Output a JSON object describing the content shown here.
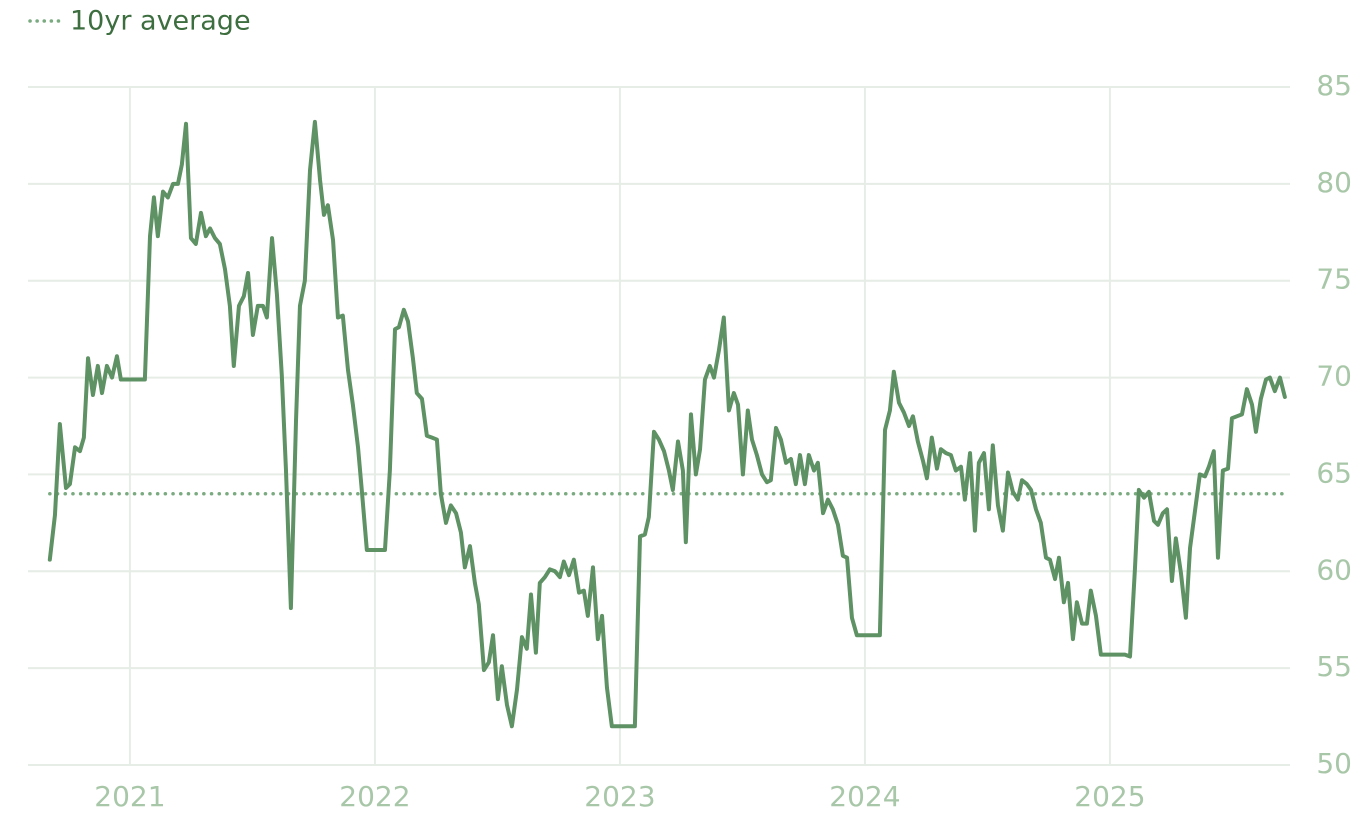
{
  "chart_data": {
    "type": "line",
    "color": "#5e9163",
    "x": [
      2020.673,
      2020.694,
      2020.714,
      2020.739,
      2020.755,
      2020.776,
      2020.796,
      2020.812,
      2020.829,
      2020.849,
      2020.869,
      2020.886,
      2020.906,
      2020.927,
      2020.947,
      2020.963,
      2021.061,
      2021.082,
      2021.098,
      2021.114,
      2021.135,
      2021.155,
      2021.176,
      2021.196,
      2021.212,
      2021.229,
      2021.249,
      2021.269,
      2021.29,
      2021.31,
      2021.327,
      2021.347,
      2021.367,
      2021.388,
      2021.408,
      2021.424,
      2021.445,
      2021.465,
      2021.482,
      2021.502,
      2021.522,
      2021.543,
      2021.559,
      2021.58,
      2021.6,
      2021.62,
      2021.637,
      2021.657,
      2021.678,
      2021.694,
      2021.714,
      2021.735,
      2021.755,
      2021.776,
      2021.792,
      2021.808,
      2021.829,
      2021.849,
      2021.869,
      2021.89,
      2021.91,
      2021.931,
      2021.947,
      2021.967,
      2022.041,
      2022.061,
      2022.082,
      2022.098,
      2022.118,
      2022.135,
      2022.155,
      2022.171,
      2022.192,
      2022.212,
      2022.233,
      2022.253,
      2022.269,
      2022.29,
      2022.31,
      2022.331,
      2022.351,
      2022.367,
      2022.388,
      2022.408,
      2022.424,
      2022.445,
      2022.465,
      2022.482,
      2022.502,
      2022.518,
      2022.539,
      2022.559,
      2022.58,
      2022.6,
      2022.62,
      2022.637,
      2022.657,
      2022.673,
      2022.694,
      2022.714,
      2022.735,
      2022.755,
      2022.771,
      2022.792,
      2022.812,
      2022.833,
      2022.853,
      2022.869,
      2022.89,
      2022.91,
      2022.927,
      2022.947,
      2022.967,
      2023.061,
      2023.082,
      2023.102,
      2023.118,
      2023.139,
      2023.159,
      2023.18,
      2023.2,
      2023.216,
      2023.237,
      2023.257,
      2023.269,
      2023.29,
      2023.31,
      2023.327,
      2023.347,
      2023.367,
      2023.384,
      2023.404,
      2023.424,
      2023.445,
      2023.465,
      2023.482,
      2023.502,
      2023.522,
      2023.539,
      2023.559,
      2023.58,
      2023.6,
      2023.616,
      2023.637,
      2023.657,
      2023.678,
      2023.698,
      2023.718,
      2023.735,
      2023.755,
      2023.771,
      2023.792,
      2023.808,
      2023.829,
      2023.849,
      2023.869,
      2023.89,
      2023.91,
      2023.927,
      2023.947,
      2023.967,
      2024.061,
      2024.082,
      2024.102,
      2024.118,
      2024.139,
      2024.159,
      2024.18,
      2024.196,
      2024.216,
      2024.237,
      2024.253,
      2024.273,
      2024.294,
      2024.31,
      2024.331,
      2024.351,
      2024.371,
      2024.392,
      2024.408,
      2024.429,
      2024.449,
      2024.465,
      2024.486,
      2024.506,
      2024.522,
      2024.543,
      2024.563,
      2024.584,
      2024.604,
      2024.624,
      2024.641,
      2024.661,
      2024.678,
      2024.698,
      2024.718,
      2024.739,
      2024.755,
      2024.776,
      2024.792,
      2024.812,
      2024.829,
      2024.849,
      2024.865,
      2024.886,
      2024.906,
      2024.922,
      2024.943,
      2024.963,
      2025.061,
      2025.082,
      2025.102,
      2025.118,
      2025.139,
      2025.159,
      2025.18,
      2025.196,
      2025.216,
      2025.233,
      2025.253,
      2025.269,
      2025.29,
      2025.31,
      2025.327,
      2025.347,
      2025.367,
      2025.388,
      2025.404,
      2025.424,
      2025.441,
      2025.461,
      2025.482,
      2025.498,
      2025.518,
      2025.539,
      2025.559,
      2025.58,
      2025.596,
      2025.616,
      2025.637,
      2025.653,
      2025.673,
      2025.694,
      2025.714
    ],
    "values": [
      60.6,
      62.9,
      67.6,
      64.3,
      64.5,
      66.4,
      66.2,
      66.9,
      71.0,
      69.1,
      70.6,
      69.2,
      70.6,
      70.0,
      71.1,
      69.9,
      69.9,
      77.3,
      79.3,
      77.3,
      79.6,
      79.3,
      80.0,
      80.0,
      81.0,
      83.1,
      77.2,
      76.9,
      78.5,
      77.3,
      77.7,
      77.2,
      76.9,
      75.6,
      73.7,
      70.6,
      73.7,
      74.2,
      75.4,
      72.2,
      73.7,
      73.7,
      73.1,
      77.2,
      74.3,
      70.1,
      65.2,
      58.1,
      67.8,
      73.7,
      75.0,
      80.7,
      83.2,
      80.2,
      78.4,
      78.9,
      77.1,
      73.1,
      73.2,
      70.4,
      68.6,
      66.4,
      64.1,
      61.1,
      61.1,
      65.2,
      72.5,
      72.6,
      73.5,
      72.9,
      71.0,
      69.2,
      68.9,
      67.0,
      66.9,
      66.8,
      64.0,
      62.5,
      63.4,
      63.0,
      62.0,
      60.2,
      61.3,
      59.4,
      58.3,
      54.9,
      55.3,
      56.7,
      53.4,
      55.1,
      53.1,
      52.0,
      53.9,
      56.6,
      56.0,
      58.8,
      55.8,
      59.4,
      59.7,
      60.1,
      60.0,
      59.7,
      60.5,
      59.8,
      60.6,
      58.9,
      59.0,
      57.7,
      60.2,
      56.5,
      57.7,
      54.0,
      52.0,
      52.0,
      61.8,
      61.9,
      62.8,
      67.2,
      66.8,
      66.2,
      65.2,
      64.2,
      66.7,
      65.2,
      61.5,
      68.1,
      65.0,
      66.3,
      69.9,
      70.6,
      70.0,
      71.4,
      73.1,
      68.3,
      69.2,
      68.6,
      65.0,
      68.3,
      66.8,
      66.0,
      65.0,
      64.6,
      64.7,
      67.4,
      66.8,
      65.6,
      65.8,
      64.5,
      66.0,
      64.5,
      66.0,
      65.2,
      65.6,
      63.0,
      63.7,
      63.2,
      62.4,
      60.8,
      60.7,
      57.6,
      56.7,
      56.7,
      67.3,
      68.3,
      70.3,
      68.7,
      68.2,
      67.5,
      68.0,
      66.7,
      65.7,
      64.8,
      66.9,
      65.3,
      66.3,
      66.1,
      66.0,
      65.2,
      65.4,
      63.7,
      66.1,
      62.1,
      65.6,
      66.1,
      63.2,
      66.5,
      63.4,
      62.1,
      65.1,
      64.1,
      63.7,
      64.7,
      64.5,
      64.2,
      63.2,
      62.5,
      60.7,
      60.6,
      59.6,
      60.7,
      58.4,
      59.4,
      56.5,
      58.4,
      57.3,
      57.3,
      59.0,
      57.7,
      55.7,
      55.7,
      55.6,
      60.1,
      64.2,
      63.8,
      64.1,
      62.6,
      62.4,
      63.0,
      63.2,
      59.5,
      61.7,
      59.9,
      57.6,
      61.2,
      63.1,
      65.0,
      64.9,
      65.4,
      66.2,
      60.7,
      65.2,
      65.3,
      67.9,
      68.0,
      68.1,
      69.4,
      68.6,
      67.2,
      68.9,
      69.9,
      70.0,
      69.3,
      70.0,
      69.0
    ],
    "reference_line": {
      "name": "10yr average",
      "value": 64,
      "color": "#7aaa7f"
    },
    "xlim": [
      2020.584,
      2025.735
    ],
    "xticks": [
      2021,
      2022,
      2023,
      2024,
      2025
    ],
    "ylim": [
      50,
      85
    ],
    "yticks": [
      50,
      55,
      60,
      65,
      70,
      75,
      80,
      85
    ],
    "grid": true
  }
}
